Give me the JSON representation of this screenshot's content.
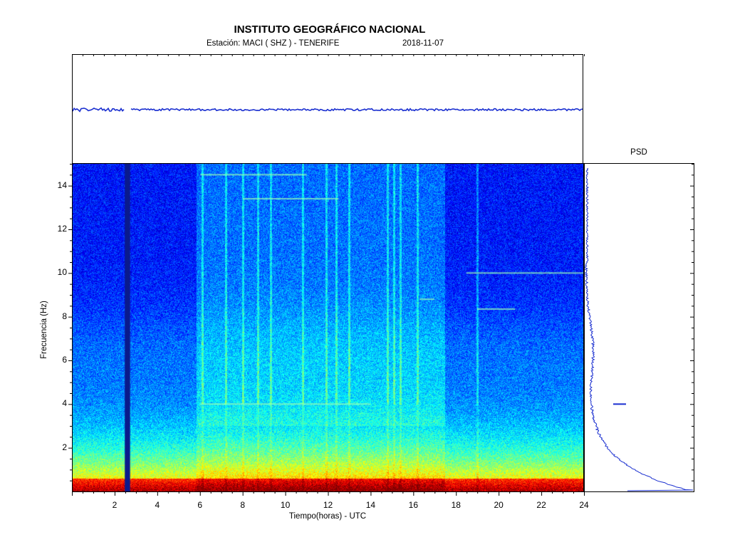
{
  "header": {
    "title": "INSTITUTO GEOGRÁFICO NACIONAL",
    "station": "Estación:  MACI ( SHZ ) - TENERIFE",
    "date": "2018-11-07"
  },
  "psd_panel": {
    "title": "PSD"
  },
  "chart_data": {
    "type": "heatmap",
    "title": "INSTITUTO GEOGRÁFICO NACIONAL",
    "subtitle": "Estación:  MACI ( SHZ ) - TENERIFE        2018-11-07",
    "xlabel": "Tiempo(horas) - UTC",
    "ylabel": "Frecuencia  (Hz)",
    "xlim": [
      0,
      24
    ],
    "ylim": [
      0,
      15
    ],
    "x_ticks": [
      2,
      4,
      6,
      8,
      10,
      12,
      14,
      16,
      18,
      20,
      22,
      24
    ],
    "y_ticks": [
      2,
      4,
      6,
      8,
      10,
      12,
      14
    ],
    "colormap": "jet",
    "colors": {
      "trace": "#1a2fd0",
      "gap": "#0a1a8c"
    },
    "data_gap_hours": [
      2.45,
      2.7
    ],
    "anthropic_lines": [
      {
        "t_start": 6.0,
        "t_end": 14.0,
        "freq_hz": 4.0
      },
      {
        "t_start": 18.5,
        "t_end": 24.0,
        "freq_hz": 10.0
      },
      {
        "t_start": 19.0,
        "t_end": 20.8,
        "freq_hz": 8.35
      },
      {
        "t_start": 16.3,
        "t_end": 17.0,
        "freq_hz": 8.8
      },
      {
        "t_start": 6.0,
        "t_end": 11.0,
        "freq_hz": 14.5
      },
      {
        "t_start": 8.0,
        "t_end": 12.5,
        "freq_hz": 13.4
      }
    ],
    "psd_peak_hz": 4.0
  }
}
